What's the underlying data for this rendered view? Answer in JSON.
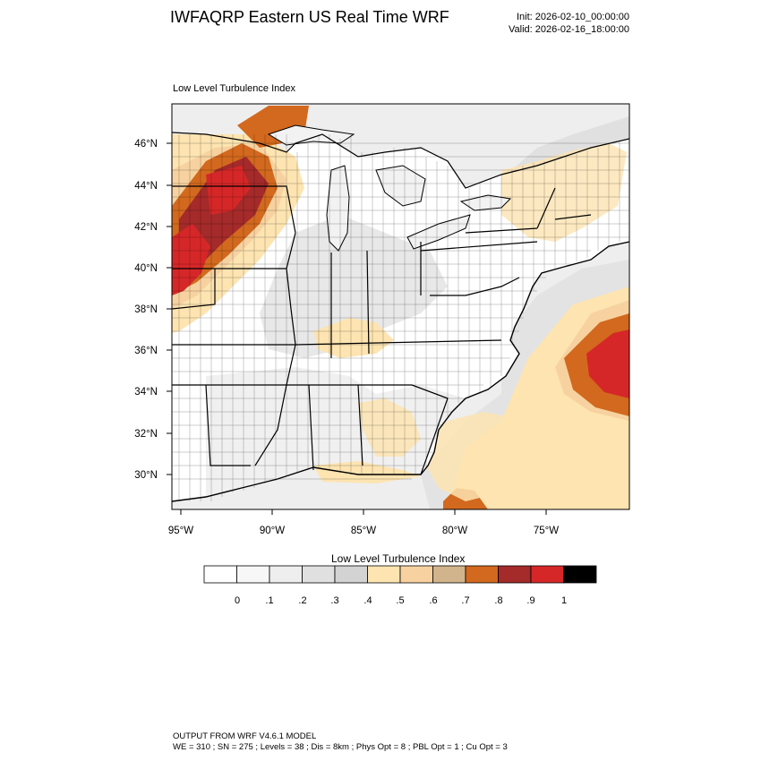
{
  "header": {
    "title": "IWFAQRP Eastern US Real Time WRF",
    "init": "Init: 2026-02-10_00:00:00",
    "valid": "Valid: 2026-02-16_18:00:00"
  },
  "map": {
    "field_label": "Low Level Turbulence Index",
    "lat_labels": [
      "46°N",
      "44°N",
      "42°N",
      "40°N",
      "38°N",
      "36°N",
      "34°N",
      "32°N",
      "30°N"
    ],
    "lon_labels": [
      "95°W",
      "90°W",
      "85°W",
      "80°W",
      "75°W"
    ],
    "land_color": "#ffffff",
    "water_color": "#f2f2f2"
  },
  "legend": {
    "title": "Low Level Turbulence Index",
    "ticks": [
      "0",
      ".1",
      ".2",
      ".3",
      ".4",
      ".5",
      ".6",
      ".7",
      ".8",
      ".9",
      "1"
    ],
    "colors": [
      "#ffffff",
      "#f7f7f7",
      "#eeeeee",
      "#e0e0e0",
      "#d3d3d3",
      "#fde4b1",
      "#f7d2a0",
      "#d2b48c",
      "#d2691e",
      "#a52a2a",
      "#d62728",
      "#000000"
    ]
  },
  "footer": {
    "line1": "OUTPUT FROM WRF V4.6.1 MODEL",
    "line2": "WE = 310 ; SN = 275 ; Levels = 38 ; Dis = 8km ; Phys Opt = 8 ; PBL Opt = 1 ; Cu Opt = 3"
  }
}
